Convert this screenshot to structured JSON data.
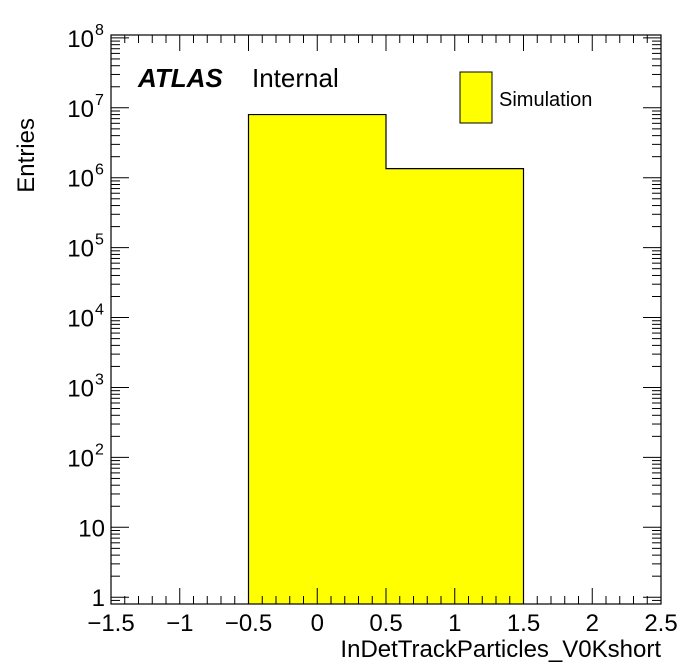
{
  "chart_data": {
    "type": "bar",
    "bins": [
      {
        "low": -0.5,
        "high": 0.5,
        "value": 8000000
      },
      {
        "low": 0.5,
        "high": 1.5,
        "value": 1350000
      }
    ],
    "xlabel": "InDetTrackParticles_V0Kshort",
    "ylabel": "Entries",
    "xlim": [
      -1.5,
      2.5
    ],
    "ylim": [
      0.8,
      110000000
    ],
    "yscale": "log",
    "x_ticks": [
      -1.5,
      -1,
      -0.5,
      0,
      0.5,
      1,
      1.5,
      2,
      2.5
    ],
    "x_tick_labels": [
      "−1.5",
      "−1",
      "−0.5",
      "0",
      "0.5",
      "1",
      "1.5",
      "2",
      "2.5"
    ],
    "y_ticks": [
      {
        "value": 1,
        "base": "1",
        "exp": ""
      },
      {
        "value": 10,
        "base": "10",
        "exp": ""
      },
      {
        "value": 100,
        "base": "10",
        "exp": "2"
      },
      {
        "value": 1000,
        "base": "10",
        "exp": "3"
      },
      {
        "value": 10000,
        "base": "10",
        "exp": "4"
      },
      {
        "value": 100000,
        "base": "10",
        "exp": "5"
      },
      {
        "value": 1000000,
        "base": "10",
        "exp": "6"
      },
      {
        "value": 10000000,
        "base": "10",
        "exp": "7"
      },
      {
        "value": 100000000,
        "base": "10",
        "exp": "8"
      }
    ],
    "fill_color": "#ffff00",
    "edge_color": "#000000",
    "grid": false,
    "label_primary": "ATLAS",
    "label_secondary": "Internal",
    "legend": {
      "entries": [
        "Simulation"
      ],
      "placement": "top-right"
    }
  }
}
